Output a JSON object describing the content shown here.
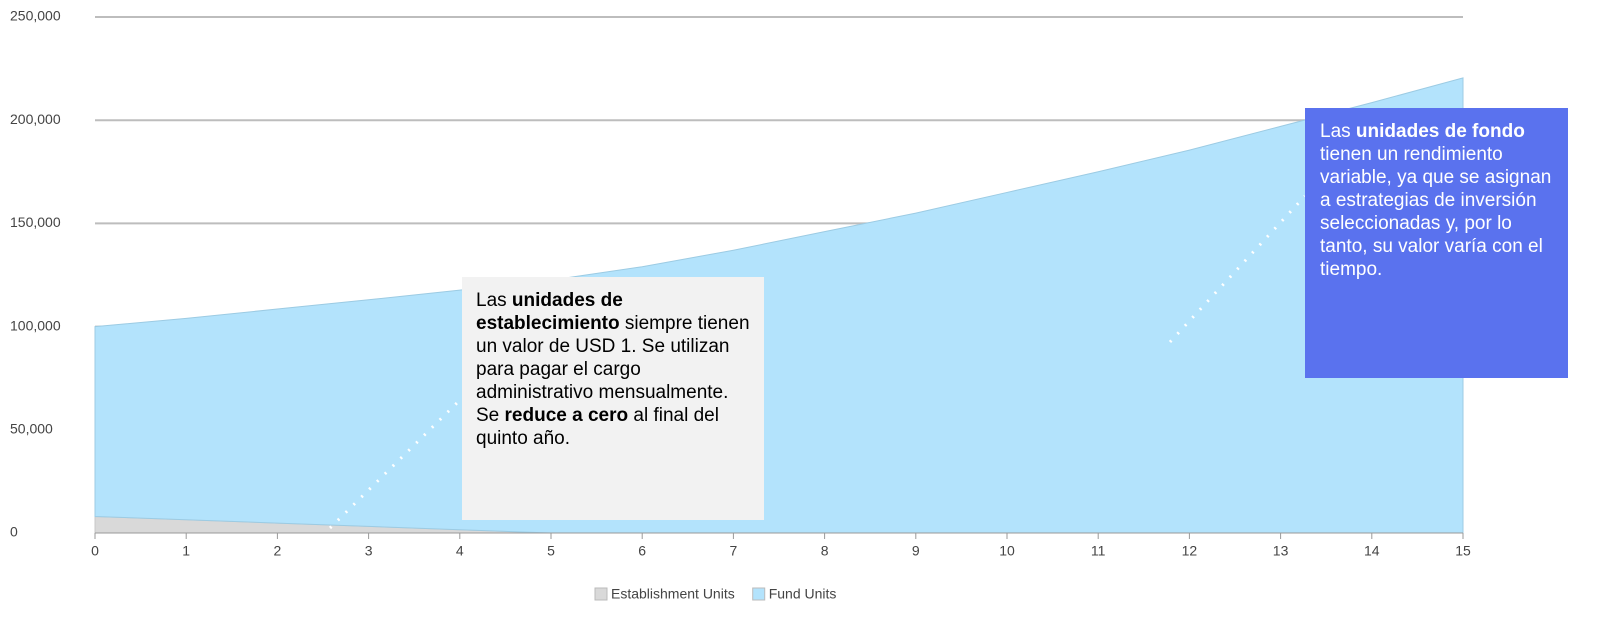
{
  "chart_data": {
    "type": "stacked_area",
    "x": [
      0,
      1,
      2,
      3,
      4,
      5,
      6,
      7,
      8,
      9,
      10,
      11,
      12,
      13,
      14,
      15
    ],
    "series": [
      {
        "name": "Establishment Units",
        "color": "#d9d9d9",
        "values": [
          8000,
          6400,
          4800,
          3200,
          1600,
          0,
          0,
          0,
          0,
          0,
          0,
          0,
          0,
          0,
          0,
          0
        ]
      },
      {
        "name": "Fund Units",
        "color": "#b3e3fc",
        "values": [
          92000,
          97600,
          103700,
          109800,
          116100,
          122500,
          129000,
          137000,
          146000,
          155000,
          165000,
          175000,
          185500,
          197000,
          208500,
          220500
        ]
      }
    ],
    "xlim": [
      0,
      15
    ],
    "xticks": [
      0,
      1,
      2,
      3,
      4,
      5,
      6,
      7,
      8,
      9,
      10,
      11,
      12,
      13,
      14,
      15
    ],
    "ylim": [
      0,
      250000
    ],
    "yticks": [
      0,
      {
        "value": 50000,
        "label": "50,000"
      },
      {
        "value": 100000,
        "label": "100,000"
      },
      {
        "value": 150000,
        "label": "150,000"
      },
      {
        "value": 200000,
        "label": "200,000"
      },
      {
        "value": 250000,
        "label": "250,000"
      }
    ],
    "grid": true,
    "legend": "bottom",
    "annotations": [
      {
        "parts": [
          {
            "text": "Las "
          },
          {
            "text": "unidades de establecimiento",
            "bold": true
          },
          {
            "text": " siempre tienen un valor de USD 1. Se utilizan para pagar el cargo administrativo mensualmente. Se "
          },
          {
            "text": "reduce a cero",
            "bold": true
          },
          {
            "text": " al final del quinto año."
          }
        ]
      },
      {
        "parts": [
          {
            "text": "Las "
          },
          {
            "text": "unidades de fondo",
            "bold": true
          },
          {
            "text": " tienen un rendimiento variable, ya que se asignan a estrategias de inversión seleccionadas y, por lo tanto, su valor varía con el tiempo."
          }
        ]
      }
    ]
  }
}
